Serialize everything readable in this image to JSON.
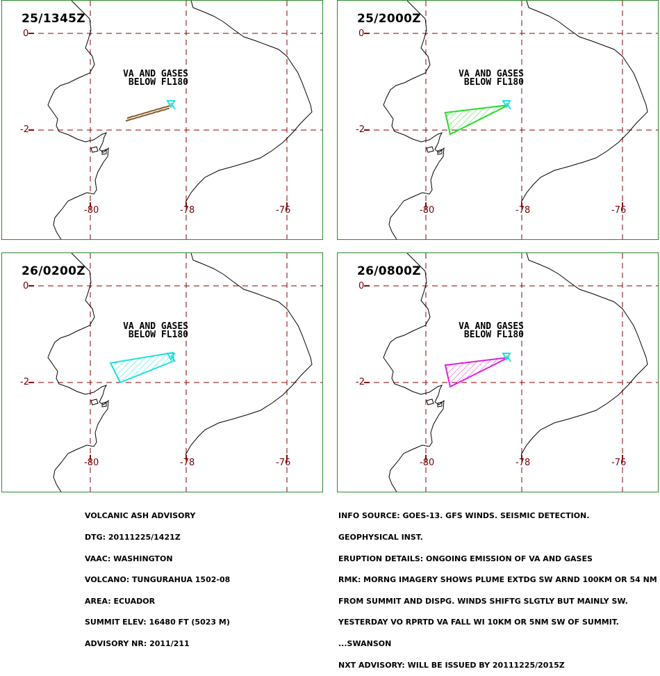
{
  "panels": [
    {
      "time": "25/1345Z",
      "note_l1": "VA AND GASES",
      "note_l2": "BELOW FL180",
      "color": "#8b5a2b",
      "style": "dashes"
    },
    {
      "time": "25/2000Z",
      "note_l1": "VA AND GASES",
      "note_l2": "BELOW FL180",
      "color": "#22dd22",
      "style": "poly_a"
    },
    {
      "time": "26/0200Z",
      "note_l1": "VA AND GASES",
      "note_l2": "BELOW FL180",
      "color": "#22dddd",
      "style": "poly_b"
    },
    {
      "time": "26/0800Z",
      "note_l1": "VA AND GASES",
      "note_l2": "BELOW FL180",
      "color": "#dd22dd",
      "style": "poly_a"
    }
  ],
  "grid": {
    "lat_labels": [
      "0",
      "-2"
    ],
    "lon_labels": [
      "-80",
      "-78",
      "-76"
    ],
    "line_color": "#8b0000"
  },
  "volcano_color": "#22dddd",
  "advisory_left": [
    "VOLCANIC ASH ADVISORY",
    "DTG: 20111225/1421Z",
    "VAAC: WASHINGTON",
    "VOLCANO: TUNGURAHUA 1502-08",
    "AREA: ECUADOR",
    "SUMMIT ELEV: 16480 FT (5023 M)",
    "ADVISORY NR: 2011/211"
  ],
  "advisory_right": [
    "INFO SOURCE: GOES-13. GFS WINDS. SEISMIC DETECTION.",
    "GEOPHYSICAL INST.",
    "ERUPTION DETAILS: ONGOING EMISSION OF VA AND GASES",
    "RMK: MORNG IMAGERY SHOWS PLUME EXTDG SW ARND 100KM OR 54 NM",
    "FROM SUMMIT AND DISPG. WINDS SHIFTG SLGTLY BUT MAINLY SW.",
    "YESTERDAY VO RPRTD VA FALL WI 10KM OR 5NM SW OF SUMMIT.",
    "...SWANSON",
    "NXT ADVISORY: WILL BE ISSUED BY 20111225/2015Z"
  ]
}
